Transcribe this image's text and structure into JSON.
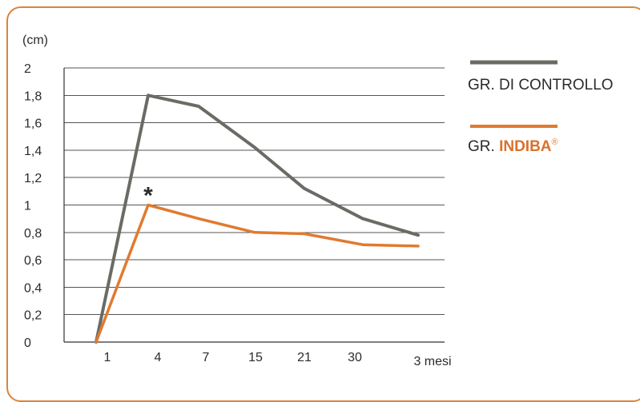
{
  "chart_data": {
    "type": "line",
    "title": "",
    "ylabel": "(cm)",
    "xlabel": "",
    "categories": [
      "1",
      "4",
      "7",
      "15",
      "21",
      "30",
      "3 mesi"
    ],
    "y_tick_labels": [
      "0",
      "0,2",
      "0,4",
      "0,6",
      "0,8",
      "1",
      "1,2",
      "1,4",
      "1,6",
      "1,8",
      "2"
    ],
    "ylim": [
      0,
      2
    ],
    "grid": true,
    "legend_position": "right",
    "series": [
      {
        "name": "GR. DI CONTROLLO",
        "color": "#6b6b66",
        "values": [
          0,
          1.8,
          1.72,
          1.42,
          1.12,
          0.9,
          0.78
        ]
      },
      {
        "name_prefix": "GR.",
        "name_brand": "INDIBA",
        "name_suffix": "®",
        "color": "#e07a30",
        "values": [
          0,
          1.0,
          0.9,
          0.8,
          0.79,
          0.71,
          0.7
        ]
      }
    ],
    "annotations": [
      {
        "text": "*",
        "category": "4"
      }
    ]
  },
  "frame": {
    "border_color": "#d9853b"
  }
}
